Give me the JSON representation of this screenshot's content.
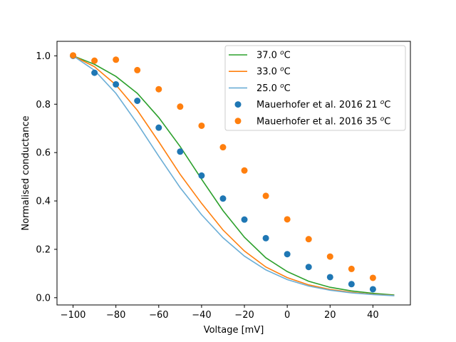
{
  "chart_data": {
    "type": "line",
    "title": "",
    "xlabel": "Voltage [mV]",
    "ylabel": "Normalised conductance",
    "xlim": [
      -107.5,
      57.5
    ],
    "ylim": [
      -0.03,
      1.06
    ],
    "xticks": [
      -100,
      -80,
      -60,
      -40,
      -20,
      0,
      20,
      40
    ],
    "xtick_labels": [
      "−100",
      "−80",
      "−60",
      "−40",
      "−20",
      "0",
      "20",
      "40"
    ],
    "yticks": [
      0.0,
      0.2,
      0.4,
      0.6,
      0.8,
      1.0
    ],
    "ytick_labels": [
      "0.0",
      "0.2",
      "0.4",
      "0.6",
      "0.8",
      "1.0"
    ],
    "grid": false,
    "legend_position": "top-right",
    "series": [
      {
        "name": "37.0",
        "legend_unit": "C",
        "kind": "line",
        "color": "#2ca02c",
        "x": [
          -100,
          -90,
          -80,
          -70,
          -60,
          -50,
          -40,
          -30,
          -20,
          -10,
          0,
          10,
          20,
          30,
          40,
          50
        ],
        "y": [
          1.0,
          0.965,
          0.915,
          0.845,
          0.745,
          0.625,
          0.49,
          0.36,
          0.25,
          0.165,
          0.108,
          0.068,
          0.043,
          0.028,
          0.018,
          0.011
        ]
      },
      {
        "name": "33.0",
        "legend_unit": "C",
        "kind": "line",
        "color": "#ff7f0e",
        "x": [
          -100,
          -90,
          -80,
          -70,
          -60,
          -50,
          -40,
          -30,
          -20,
          -10,
          0,
          10,
          20,
          30,
          40,
          50
        ],
        "y": [
          1.0,
          0.955,
          0.88,
          0.775,
          0.645,
          0.51,
          0.39,
          0.28,
          0.193,
          0.127,
          0.083,
          0.053,
          0.034,
          0.022,
          0.014,
          0.009
        ]
      },
      {
        "name": "25.0",
        "legend_unit": "C",
        "kind": "line",
        "color": "#6baed6",
        "x": [
          -100,
          -90,
          -80,
          -70,
          -60,
          -50,
          -40,
          -30,
          -20,
          -10,
          0,
          10,
          20,
          30,
          40,
          50
        ],
        "y": [
          1.0,
          0.94,
          0.845,
          0.72,
          0.585,
          0.455,
          0.343,
          0.248,
          0.172,
          0.115,
          0.075,
          0.048,
          0.031,
          0.02,
          0.013,
          0.008
        ]
      },
      {
        "name": "Mauerhofer et al. 2016 21",
        "legend_unit": "C",
        "kind": "scatter",
        "color": "#1f77b4",
        "x": [
          -100,
          -90,
          -80,
          -70,
          -60,
          -50,
          -40,
          -30,
          -20,
          -10,
          0,
          10,
          20,
          30,
          40
        ],
        "y": [
          1.0,
          0.93,
          0.882,
          0.814,
          0.703,
          0.604,
          0.505,
          0.41,
          0.323,
          0.246,
          0.18,
          0.127,
          0.085,
          0.056,
          0.035
        ]
      },
      {
        "name": "Mauerhofer et al. 2016 35",
        "legend_unit": "C",
        "kind": "scatter",
        "color": "#ff7f0e",
        "x": [
          -100,
          -90,
          -80,
          -70,
          -60,
          -50,
          -40,
          -30,
          -20,
          -10,
          0,
          10,
          20,
          30,
          40
        ],
        "y": [
          1.002,
          0.98,
          0.984,
          0.941,
          0.862,
          0.79,
          0.711,
          0.622,
          0.526,
          0.421,
          0.324,
          0.242,
          0.17,
          0.119,
          0.082
        ]
      }
    ]
  }
}
